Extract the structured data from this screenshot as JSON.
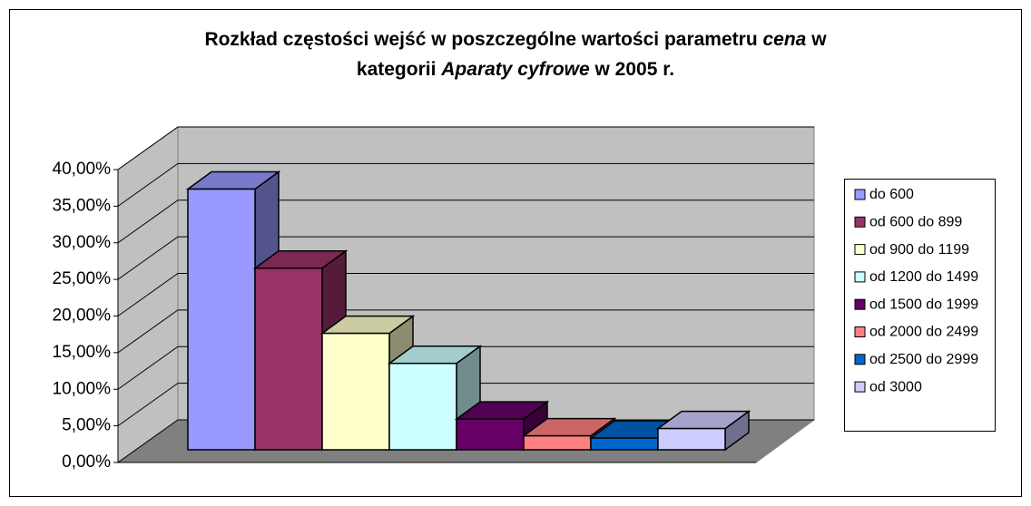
{
  "chart_data": {
    "type": "bar3d",
    "title": {
      "line1": [
        "Rozkład częstości wejść w poszczególne wartości parametru",
        "cena",
        "w"
      ],
      "line2": [
        "kategorii",
        "Aparaty cyfrowe",
        "w 2005 r."
      ]
    },
    "series": [
      {
        "name": "do 600",
        "color": "#9999ff",
        "values": [
          35.6
        ]
      },
      {
        "name": "od 600 do 899",
        "color": "#993366",
        "values": [
          24.8
        ]
      },
      {
        "name": "od 900 do 1199",
        "color": "#ffffcc",
        "values": [
          15.9
        ]
      },
      {
        "name": "od 1200 do 1499",
        "color": "#ccffff",
        "values": [
          11.8
        ]
      },
      {
        "name": "od 1500 do 1999",
        "color": "#660066",
        "values": [
          4.2
        ]
      },
      {
        "name": "od 2000 do 2499",
        "color": "#ff8080",
        "values": [
          1.9
        ]
      },
      {
        "name": "od 2500 do 2999",
        "color": "#0066cc",
        "values": [
          1.6
        ]
      },
      {
        "name": "od 3000",
        "color": "#ccccff",
        "values": [
          2.9
        ]
      }
    ],
    "ylim": [
      0,
      40
    ],
    "yticks": [
      {
        "value": 0,
        "label": "0,00%"
      },
      {
        "value": 5,
        "label": "5,00%"
      },
      {
        "value": 10,
        "label": "10,00%"
      },
      {
        "value": 15,
        "label": "15,00%"
      },
      {
        "value": 20,
        "label": "20,00%"
      },
      {
        "value": 25,
        "label": "25,00%"
      },
      {
        "value": 30,
        "label": "30,00%"
      },
      {
        "value": 35,
        "label": "35,00%"
      },
      {
        "value": 40,
        "label": "40,00%"
      }
    ],
    "grid": true,
    "legend": "right"
  }
}
